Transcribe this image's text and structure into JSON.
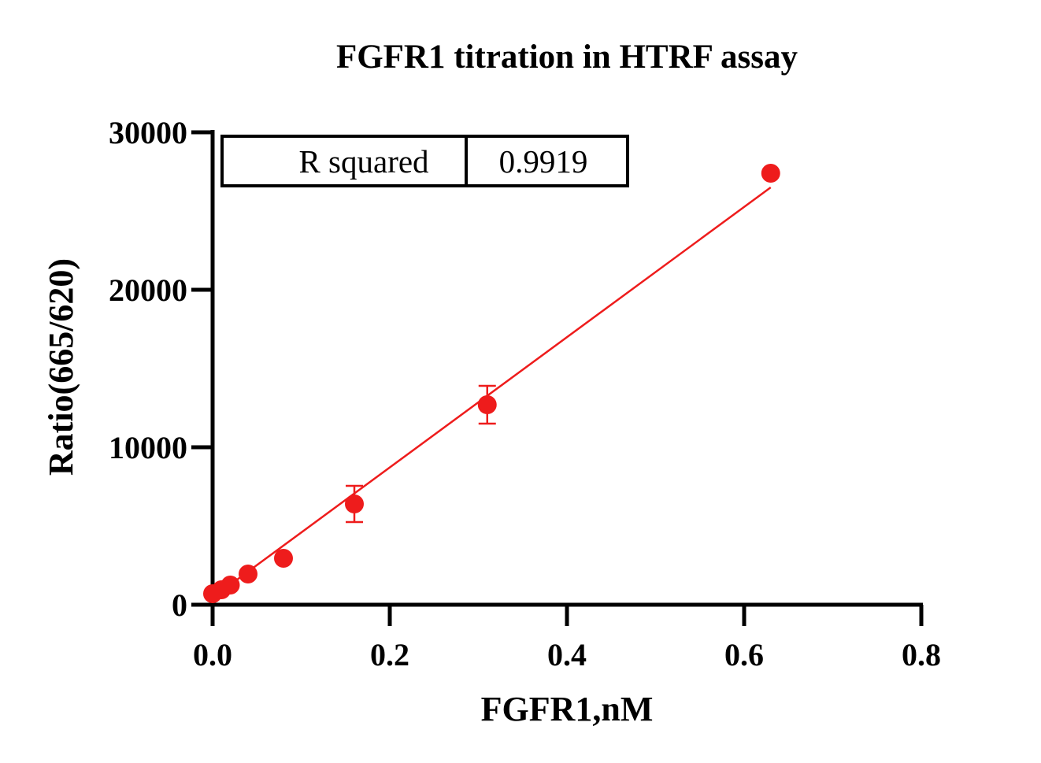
{
  "chart_data": {
    "type": "scatter",
    "title": "FGFR1 titration in HTRF assay",
    "xlabel": "FGFR1,nM",
    "ylabel": "Ratio(665/620)",
    "xlim": [
      0,
      0.8
    ],
    "ylim": [
      0,
      30000
    ],
    "x_ticks": [
      "0.0",
      "0.2",
      "0.4",
      "0.6",
      "0.8"
    ],
    "y_ticks": [
      "0",
      "10000",
      "20000",
      "30000"
    ],
    "grid": false,
    "series": [
      {
        "color": "#ee1c1c",
        "points": [
          {
            "x": 0.0,
            "y": 700
          },
          {
            "x": 0.01,
            "y": 950
          },
          {
            "x": 0.02,
            "y": 1250
          },
          {
            "x": 0.04,
            "y": 1950
          },
          {
            "x": 0.08,
            "y": 2950
          },
          {
            "x": 0.16,
            "y": 6400,
            "err": 1150
          },
          {
            "x": 0.31,
            "y": 12700,
            "err": 1200
          },
          {
            "x": 0.63,
            "y": 27400
          }
        ],
        "fit": {
          "type": "linear",
          "x_range": [
            0.0,
            0.63
          ],
          "y_range": [
            450,
            26500
          ]
        }
      }
    ],
    "stats_table": {
      "label": "R squared",
      "value": "0.9919"
    }
  }
}
